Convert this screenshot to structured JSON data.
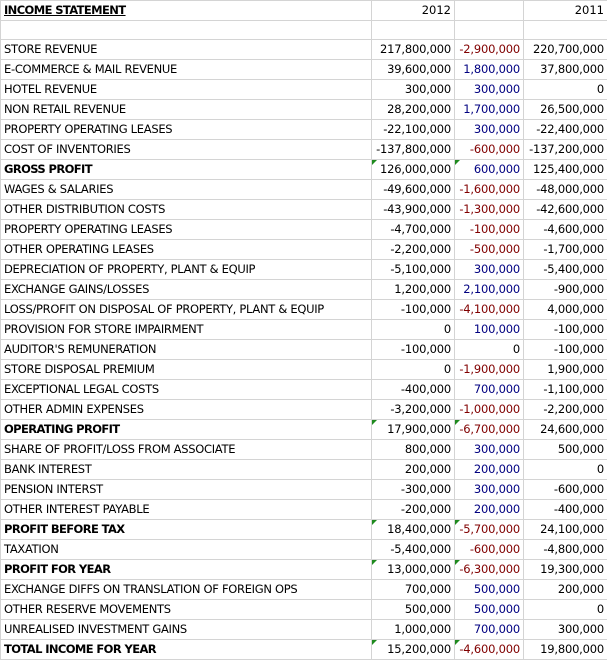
{
  "header": {
    "title": "INCOME STATEMENT",
    "year_current": "2012",
    "year_prior": "2011"
  },
  "rows": [
    {
      "label": "STORE REVENUE",
      "v2012": "217,800,000",
      "diff": "-2,900,000",
      "v2011": "220,700,000",
      "bold": false,
      "flag": false
    },
    {
      "label": "E-COMMERCE & MAIL REVENUE",
      "v2012": "39,600,000",
      "diff": "1,800,000",
      "v2011": "37,800,000",
      "bold": false,
      "flag": false
    },
    {
      "label": "HOTEL REVENUE",
      "v2012": "300,000",
      "diff": "300,000",
      "v2011": "0",
      "bold": false,
      "flag": false
    },
    {
      "label": "NON RETAIL REVENUE",
      "v2012": "28,200,000",
      "diff": "1,700,000",
      "v2011": "26,500,000",
      "bold": false,
      "flag": false
    },
    {
      "label": "PROPERTY OPERATING LEASES",
      "v2012": "-22,100,000",
      "diff": "300,000",
      "v2011": "-22,400,000",
      "bold": false,
      "flag": false
    },
    {
      "label": "COST OF INVENTORIES",
      "v2012": "-137,800,000",
      "diff": "-600,000",
      "v2011": "-137,200,000",
      "bold": false,
      "flag": false
    },
    {
      "label": "GROSS PROFIT",
      "v2012": "126,000,000",
      "diff": "600,000",
      "v2011": "125,400,000",
      "bold": true,
      "flag": true
    },
    {
      "label": "WAGES & SALARIES",
      "v2012": "-49,600,000",
      "diff": "-1,600,000",
      "v2011": "-48,000,000",
      "bold": false,
      "flag": false
    },
    {
      "label": "OTHER DISTRIBUTION COSTS",
      "v2012": "-43,900,000",
      "diff": "-1,300,000",
      "v2011": "-42,600,000",
      "bold": false,
      "flag": false
    },
    {
      "label": "PROPERTY OPERATING LEASES",
      "v2012": "-4,700,000",
      "diff": "-100,000",
      "v2011": "-4,600,000",
      "bold": false,
      "flag": false
    },
    {
      "label": "OTHER OPERATING LEASES",
      "v2012": "-2,200,000",
      "diff": "-500,000",
      "v2011": "-1,700,000",
      "bold": false,
      "flag": false
    },
    {
      "label": "DEPRECIATION OF PROPERTY, PLANT & EQUIP",
      "v2012": "-5,100,000",
      "diff": "300,000",
      "v2011": "-5,400,000",
      "bold": false,
      "flag": false
    },
    {
      "label": "EXCHANGE GAINS/LOSSES",
      "v2012": "1,200,000",
      "diff": "2,100,000",
      "v2011": "-900,000",
      "bold": false,
      "flag": false
    },
    {
      "label": "LOSS/PROFIT ON DISPOSAL OF PROPERTY, PLANT & EQUIP",
      "v2012": "-100,000",
      "diff": "-4,100,000",
      "v2011": "4,000,000",
      "bold": false,
      "flag": false
    },
    {
      "label": "PROVISION FOR STORE IMPAIRMENT",
      "v2012": "0",
      "diff": "100,000",
      "v2011": "-100,000",
      "bold": false,
      "flag": false
    },
    {
      "label": "AUDITOR'S REMUNERATION",
      "v2012": "-100,000",
      "diff": "0",
      "v2011": "-100,000",
      "bold": false,
      "flag": false
    },
    {
      "label": "STORE DISPOSAL PREMIUM",
      "v2012": "0",
      "diff": "-1,900,000",
      "v2011": "1,900,000",
      "bold": false,
      "flag": false
    },
    {
      "label": "EXCEPTIONAL LEGAL COSTS",
      "v2012": "-400,000",
      "diff": "700,000",
      "v2011": "-1,100,000",
      "bold": false,
      "flag": false
    },
    {
      "label": "OTHER ADMIN EXPENSES",
      "v2012": "-3,200,000",
      "diff": "-1,000,000",
      "v2011": "-2,200,000",
      "bold": false,
      "flag": false
    },
    {
      "label": "OPERATING PROFIT",
      "v2012": "17,900,000",
      "diff": "-6,700,000",
      "v2011": "24,600,000",
      "bold": true,
      "flag": true
    },
    {
      "label": "SHARE OF PROFIT/LOSS FROM ASSOCIATE",
      "v2012": "800,000",
      "diff": "300,000",
      "v2011": "500,000",
      "bold": false,
      "flag": false
    },
    {
      "label": "BANK INTEREST",
      "v2012": "200,000",
      "diff": "200,000",
      "v2011": "0",
      "bold": false,
      "flag": false
    },
    {
      "label": "PENSION INTERST",
      "v2012": "-300,000",
      "diff": "300,000",
      "v2011": "-600,000",
      "bold": false,
      "flag": false
    },
    {
      "label": "OTHER INTEREST PAYABLE",
      "v2012": "-200,000",
      "diff": "200,000",
      "v2011": "-400,000",
      "bold": false,
      "flag": false
    },
    {
      "label": "PROFIT BEFORE TAX",
      "v2012": "18,400,000",
      "diff": "-5,700,000",
      "v2011": "24,100,000",
      "bold": true,
      "flag": true
    },
    {
      "label": "TAXATION",
      "v2012": "-5,400,000",
      "diff": "-600,000",
      "v2011": "-4,800,000",
      "bold": false,
      "flag": false
    },
    {
      "label": "PROFIT FOR YEAR",
      "v2012": "13,000,000",
      "diff": "-6,300,000",
      "v2011": "19,300,000",
      "bold": true,
      "flag": true
    },
    {
      "label": "EXCHANGE DIFFS ON TRANSLATION OF FOREIGN OPS",
      "v2012": "700,000",
      "diff": "500,000",
      "v2011": "200,000",
      "bold": false,
      "flag": false
    },
    {
      "label": "OTHER RESERVE MOVEMENTS",
      "v2012": "500,000",
      "diff": "500,000",
      "v2011": "0",
      "bold": false,
      "flag": false
    },
    {
      "label": "UNREALISED INVESTMENT GAINS",
      "v2012": "1,000,000",
      "diff": "700,000",
      "v2011": "300,000",
      "bold": false,
      "flag": false
    },
    {
      "label": "TOTAL INCOME FOR YEAR",
      "v2012": "15,200,000",
      "diff": "-4,600,000",
      "v2011": "19,800,000",
      "bold": true,
      "flag": true
    }
  ],
  "colors": {
    "negative": "#800000",
    "positive": "#000080",
    "gridline": "#d4d4d4",
    "comment_marker": "#1e8a1e"
  }
}
